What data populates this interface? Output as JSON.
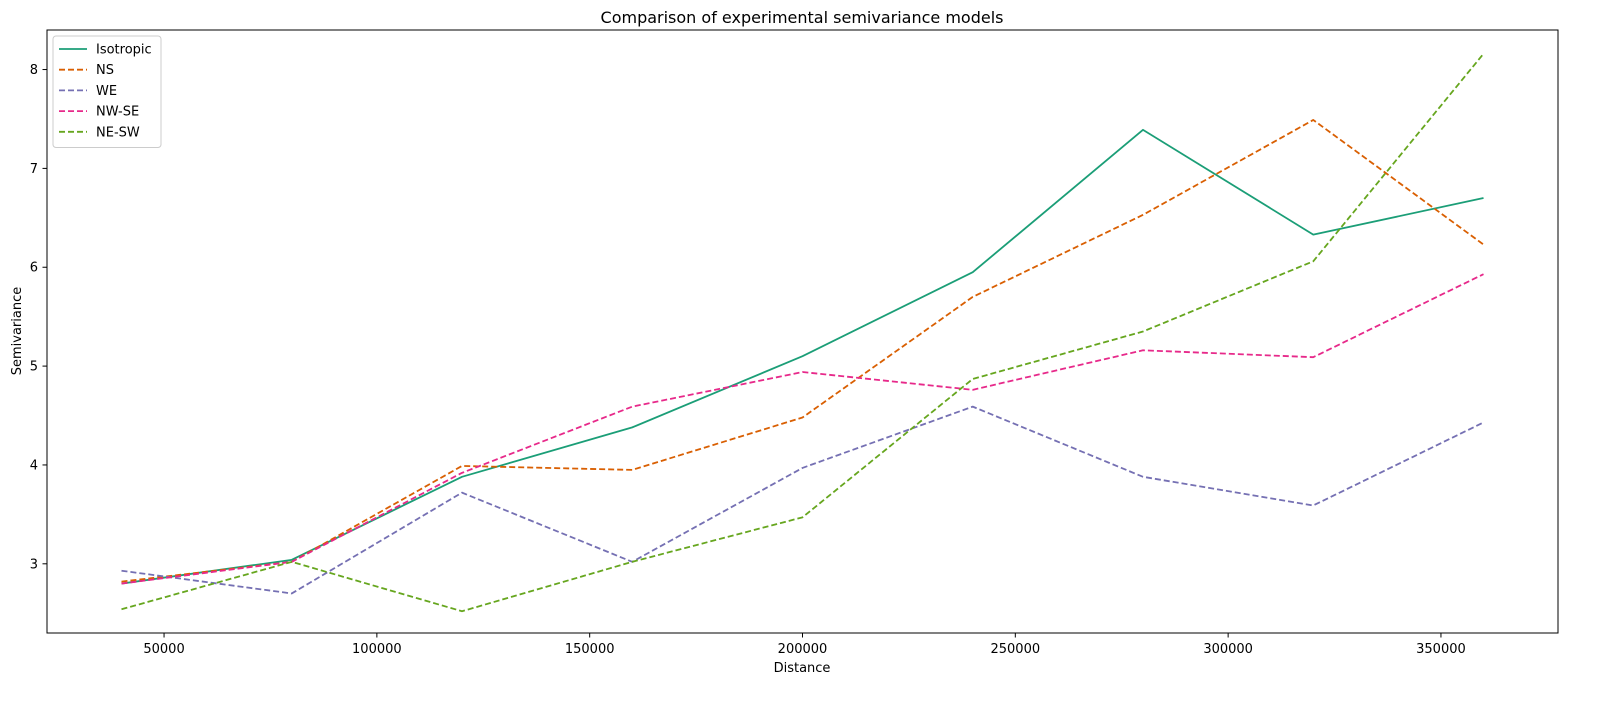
{
  "chart_data": {
    "type": "line",
    "title": "Comparison of experimental semivariance models",
    "xlabel": "Distance",
    "ylabel": "Semivariance",
    "xlim": [
      22500,
      377500
    ],
    "ylim": [
      2.3,
      8.4
    ],
    "xticks": [
      50000,
      100000,
      150000,
      200000,
      250000,
      300000,
      350000
    ],
    "yticks": [
      3,
      4,
      5,
      6,
      7,
      8
    ],
    "grid": false,
    "legend_position": "top-left",
    "x": [
      40000,
      80000,
      120000,
      160000,
      200000,
      240000,
      280000,
      320000,
      360000
    ],
    "series": [
      {
        "name": "Isotropic",
        "color": "#1b9e77",
        "dash": "solid",
        "values": [
          2.8,
          3.04,
          3.88,
          4.38,
          5.1,
          5.95,
          7.39,
          6.33,
          6.7
        ]
      },
      {
        "name": "NS",
        "color": "#d95f02",
        "dash": "dashed",
        "values": [
          2.82,
          3.02,
          3.99,
          3.95,
          4.48,
          5.7,
          6.53,
          7.49,
          6.23
        ]
      },
      {
        "name": "WE",
        "color": "#7570b3",
        "dash": "dashed",
        "values": [
          2.93,
          2.7,
          3.72,
          3.02,
          3.97,
          4.59,
          3.88,
          3.59,
          4.43
        ]
      },
      {
        "name": "NW-SE",
        "color": "#e7298a",
        "dash": "dashed",
        "values": [
          2.8,
          3.02,
          3.92,
          4.59,
          4.94,
          4.76,
          5.16,
          5.09,
          5.93
        ]
      },
      {
        "name": "NE-SW",
        "color": "#66a61e",
        "dash": "dashed",
        "values": [
          2.54,
          3.02,
          2.52,
          3.02,
          3.47,
          4.87,
          5.35,
          6.06,
          8.16
        ]
      }
    ]
  }
}
